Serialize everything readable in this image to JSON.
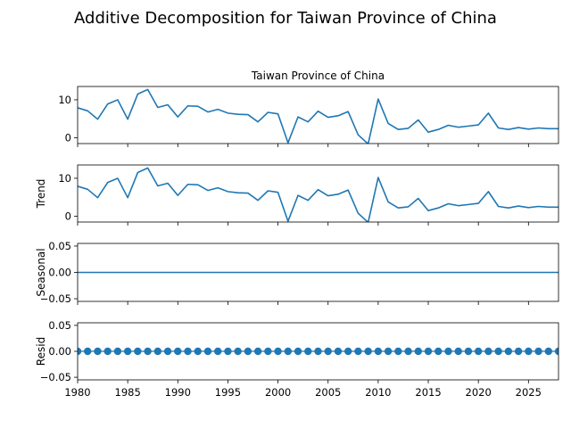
{
  "figure_title": "Additive Decomposition for Taiwan Province of China",
  "chart_data": [
    {
      "type": "line",
      "panel": "observed",
      "title": "Taiwan Province of China",
      "ylabel": "",
      "xlim": [
        1980,
        2028
      ],
      "ylim": [
        -1.5,
        13.5
      ],
      "yticks": [
        0,
        10
      ],
      "x": [
        1980,
        1981,
        1982,
        1983,
        1984,
        1985,
        1986,
        1987,
        1988,
        1989,
        1990,
        1991,
        1992,
        1993,
        1994,
        1995,
        1996,
        1997,
        1998,
        1999,
        2000,
        2001,
        2002,
        2003,
        2004,
        2005,
        2006,
        2007,
        2008,
        2009,
        2010,
        2011,
        2012,
        2013,
        2014,
        2015,
        2016,
        2017,
        2018,
        2019,
        2020,
        2021,
        2022,
        2023,
        2024,
        2025,
        2026,
        2027,
        2028
      ],
      "values": [
        7.9,
        7.1,
        4.9,
        8.9,
        10.0,
        4.9,
        11.5,
        12.7,
        8.0,
        8.7,
        5.5,
        8.4,
        8.3,
        6.8,
        7.5,
        6.5,
        6.2,
        6.1,
        4.2,
        6.7,
        6.3,
        -1.3,
        5.5,
        4.2,
        7.0,
        5.4,
        5.8,
        6.9,
        0.8,
        -1.6,
        10.2,
        3.8,
        2.2,
        2.5,
        4.7,
        1.5,
        2.2,
        3.3,
        2.8,
        3.1,
        3.4,
        6.5,
        2.6,
        2.2,
        2.7,
        2.3,
        2.6,
        2.4,
        2.4
      ],
      "color": "#1f77b4"
    },
    {
      "type": "line",
      "panel": "trend",
      "ylabel": "Trend",
      "xlim": [
        1980,
        2028
      ],
      "ylim": [
        -1.5,
        13.5
      ],
      "yticks": [
        0,
        10
      ],
      "x": [
        1980,
        1981,
        1982,
        1983,
        1984,
        1985,
        1986,
        1987,
        1988,
        1989,
        1990,
        1991,
        1992,
        1993,
        1994,
        1995,
        1996,
        1997,
        1998,
        1999,
        2000,
        2001,
        2002,
        2003,
        2004,
        2005,
        2006,
        2007,
        2008,
        2009,
        2010,
        2011,
        2012,
        2013,
        2014,
        2015,
        2016,
        2017,
        2018,
        2019,
        2020,
        2021,
        2022,
        2023,
        2024,
        2025,
        2026,
        2027,
        2028
      ],
      "values": [
        7.9,
        7.1,
        4.9,
        8.9,
        10.0,
        4.9,
        11.5,
        12.7,
        8.0,
        8.7,
        5.5,
        8.4,
        8.3,
        6.8,
        7.5,
        6.5,
        6.2,
        6.1,
        4.2,
        6.7,
        6.3,
        -1.3,
        5.5,
        4.2,
        7.0,
        5.4,
        5.8,
        6.9,
        0.8,
        -1.6,
        10.2,
        3.8,
        2.2,
        2.5,
        4.7,
        1.5,
        2.2,
        3.3,
        2.8,
        3.1,
        3.4,
        6.5,
        2.6,
        2.2,
        2.7,
        2.3,
        2.6,
        2.4,
        2.4
      ],
      "color": "#1f77b4"
    },
    {
      "type": "line",
      "panel": "seasonal",
      "ylabel": "Seasonal",
      "xlim": [
        1980,
        2028
      ],
      "ylim": [
        -0.055,
        0.055
      ],
      "yticks": [
        -0.05,
        0.0,
        0.05
      ],
      "ytick_labels": [
        "−0.05",
        "0.00",
        "0.05"
      ],
      "x": [
        1980,
        2028
      ],
      "values": [
        0,
        0
      ],
      "color": "#1f77b4"
    },
    {
      "type": "scatter",
      "panel": "resid",
      "ylabel": "Resid",
      "xlim": [
        1980,
        2028
      ],
      "ylim": [
        -0.055,
        0.055
      ],
      "yticks": [
        -0.05,
        0.0,
        0.05
      ],
      "ytick_labels": [
        "−0.05",
        "0.00",
        "0.05"
      ],
      "xticks": [
        1980,
        1985,
        1990,
        1995,
        2000,
        2005,
        2010,
        2015,
        2020,
        2025
      ],
      "x": [
        1980,
        1981,
        1982,
        1983,
        1984,
        1985,
        1986,
        1987,
        1988,
        1989,
        1990,
        1991,
        1992,
        1993,
        1994,
        1995,
        1996,
        1997,
        1998,
        1999,
        2000,
        2001,
        2002,
        2003,
        2004,
        2005,
        2006,
        2007,
        2008,
        2009,
        2010,
        2011,
        2012,
        2013,
        2014,
        2015,
        2016,
        2017,
        2018,
        2019,
        2020,
        2021,
        2022,
        2023,
        2024,
        2025,
        2026,
        2027,
        2028
      ],
      "values": [
        0,
        0,
        0,
        0,
        0,
        0,
        0,
        0,
        0,
        0,
        0,
        0,
        0,
        0,
        0,
        0,
        0,
        0,
        0,
        0,
        0,
        0,
        0,
        0,
        0,
        0,
        0,
        0,
        0,
        0,
        0,
        0,
        0,
        0,
        0,
        0,
        0,
        0,
        0,
        0,
        0,
        0,
        0,
        0,
        0,
        0,
        0,
        0,
        0
      ],
      "zero_line": true,
      "color": "#1f77b4"
    }
  ]
}
